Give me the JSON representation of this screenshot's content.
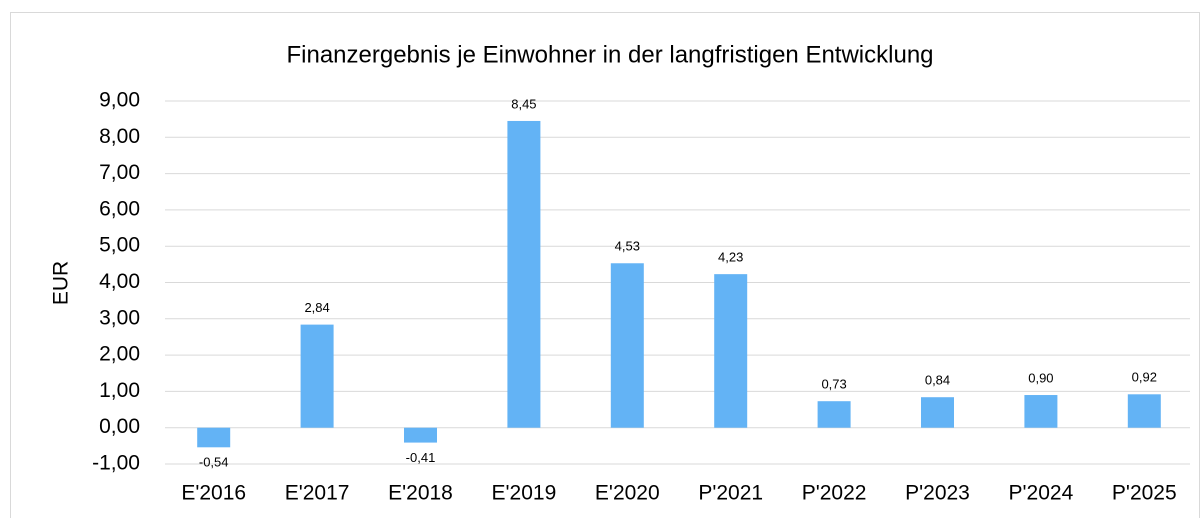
{
  "chart_data": {
    "type": "bar",
    "title": "Finanzergebnis je Einwohner in der langfristigen Entwicklung",
    "y_label": "EUR",
    "categories": [
      "E'2016",
      "E'2017",
      "E'2018",
      "E'2019",
      "E'2020",
      "P'2021",
      "P'2022",
      "P'2023",
      "P'2024",
      "P'2025"
    ],
    "values": [
      -0.54,
      2.84,
      -0.41,
      8.45,
      4.53,
      4.23,
      0.73,
      0.84,
      0.9,
      0.92
    ],
    "value_labels": [
      "-0,54",
      "2,84",
      "-0,41",
      "8,45",
      "4,53",
      "4,23",
      "0,73",
      "0,84",
      "0,90",
      "0,92"
    ],
    "color": "#63b3f5",
    "ylim": [
      -1,
      9
    ],
    "yticks": [
      {
        "value": -1,
        "label": "-1,00"
      },
      {
        "value": 0,
        "label": "0,00"
      },
      {
        "value": 1,
        "label": "1,00"
      },
      {
        "value": 2,
        "label": "2,00"
      },
      {
        "value": 3,
        "label": "3,00"
      },
      {
        "value": 4,
        "label": "4,00"
      },
      {
        "value": 5,
        "label": "5,00"
      },
      {
        "value": 6,
        "label": "6,00"
      },
      {
        "value": 7,
        "label": "7,00"
      },
      {
        "value": 8,
        "label": "8,00"
      },
      {
        "value": 9,
        "label": "9,00"
      }
    ],
    "grid": true
  }
}
